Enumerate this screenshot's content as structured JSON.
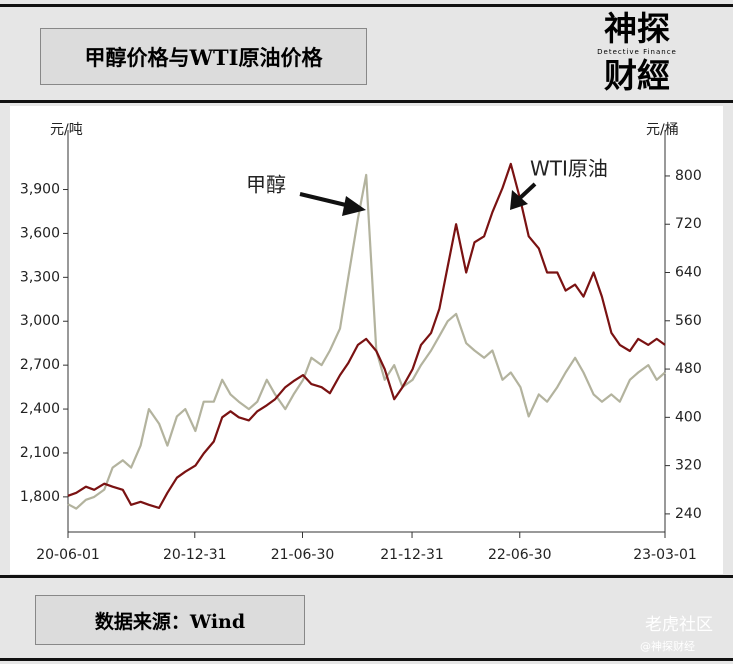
{
  "header": {
    "title": "甲醇价格与WTI原油价格",
    "logo_top": "神探",
    "logo_bottom": "财經",
    "logo_sub": "Detective Finance"
  },
  "footer": {
    "source": "数据来源：Wind",
    "watermark": "老虎社区",
    "credit": "@神探财经"
  },
  "chart_data": {
    "type": "line",
    "y_unit": "元/吨",
    "y2_unit": "元/桶",
    "annotations": [
      "甲醇",
      "WTI原油"
    ],
    "x": [
      "20-06-01",
      "20-06-15",
      "20-07-01",
      "20-07-15",
      "20-08-01",
      "20-08-15",
      "20-09-01",
      "20-09-15",
      "20-10-01",
      "20-10-15",
      "20-11-01",
      "20-11-15",
      "20-12-01",
      "20-12-15",
      "21-01-01",
      "21-01-15",
      "21-02-01",
      "21-02-15",
      "21-03-01",
      "21-03-15",
      "21-04-01",
      "21-04-15",
      "21-05-01",
      "21-05-15",
      "21-06-01",
      "21-06-15",
      "21-07-01",
      "21-07-15",
      "21-08-01",
      "21-08-15",
      "21-09-01",
      "21-09-15",
      "21-10-01",
      "21-10-15",
      "21-11-01",
      "21-11-15",
      "21-12-01",
      "21-12-15",
      "22-01-01",
      "22-01-15",
      "22-02-01",
      "22-02-15",
      "22-03-01",
      "22-03-15",
      "22-04-01",
      "22-04-15",
      "22-05-01",
      "22-05-15",
      "22-06-01",
      "22-06-15",
      "22-07-01",
      "22-07-15",
      "22-08-01",
      "22-08-15",
      "22-09-01",
      "22-09-15",
      "22-10-01",
      "22-10-15",
      "22-11-01",
      "22-11-15",
      "22-12-01",
      "22-12-15",
      "23-01-01",
      "23-01-15",
      "23-02-01",
      "23-02-15",
      "23-03-01"
    ],
    "series": [
      {
        "name": "甲醇",
        "color": "#b3b39e",
        "values": [
          1750,
          1720,
          1780,
          1800,
          1850,
          2000,
          2050,
          2000,
          2150,
          2400,
          2300,
          2150,
          2350,
          2400,
          2250,
          2450,
          2450,
          2600,
          2500,
          2450,
          2400,
          2450,
          2600,
          2500,
          2400,
          2500,
          2600,
          2750,
          2700,
          2800,
          2950,
          3300,
          3700,
          4000,
          2800,
          2600,
          2700,
          2550,
          2600,
          2700,
          2800,
          2900,
          3000,
          3050,
          2850,
          2800,
          2750,
          2800,
          2600,
          2650,
          2550,
          2350,
          2500,
          2450,
          2550,
          2650,
          2750,
          2650,
          2500,
          2450,
          2500,
          2450,
          2600,
          2650,
          2700,
          2600,
          2650
        ]
      },
      {
        "name": "WTI原油",
        "color": "#7a1212",
        "axis": "y2",
        "values": [
          270,
          275,
          285,
          280,
          290,
          285,
          280,
          255,
          260,
          255,
          250,
          275,
          300,
          310,
          320,
          340,
          360,
          400,
          410,
          400,
          395,
          410,
          420,
          430,
          450,
          460,
          470,
          455,
          450,
          440,
          470,
          490,
          520,
          530,
          510,
          480,
          430,
          450,
          480,
          520,
          540,
          580,
          650,
          720,
          640,
          690,
          700,
          740,
          780,
          820,
          760,
          700,
          680,
          640,
          640,
          610,
          620,
          600,
          640,
          600,
          540,
          520,
          510,
          530,
          520,
          530,
          520
        ]
      }
    ],
    "xlim": [
      "20-06-01",
      "23-03-01"
    ],
    "xticks": [
      "20-06-01",
      "20-12-31",
      "21-06-30",
      "21-12-31",
      "22-06-30",
      "23-03-01"
    ],
    "ylim": [
      1560,
      4170
    ],
    "yticks": [
      {
        "value": 1800,
        "label": "1,800"
      },
      {
        "value": 2100,
        "label": "2,100"
      },
      {
        "value": 2400,
        "label": "2,400"
      },
      {
        "value": 2700,
        "label": "2,700"
      },
      {
        "value": 3000,
        "label": "3,000"
      },
      {
        "value": 3300,
        "label": "3,300"
      },
      {
        "value": 3600,
        "label": "3,600"
      },
      {
        "value": 3900,
        "label": "3,900"
      }
    ],
    "y2lim": [
      210,
      843
    ],
    "y2ticks": [
      240,
      320,
      400,
      480,
      560,
      640,
      720,
      800
    ]
  }
}
